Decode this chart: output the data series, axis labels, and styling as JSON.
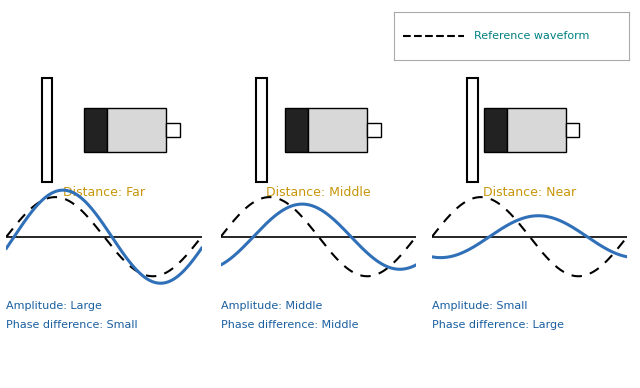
{
  "bg_color": "#ffffff",
  "panel_titles": [
    "Distance: Far",
    "Distance: Middle",
    "Distance: Near"
  ],
  "bottom_labels": [
    [
      "Amplitude: Large",
      "Phase difference: Small"
    ],
    [
      "Amplitude: Middle",
      "Phase difference: Middle"
    ],
    [
      "Amplitude: Small",
      "Phase difference: Large"
    ]
  ],
  "title_color": "#c8960a",
  "bottom_label_color": "#1a5fa0",
  "amplitudes": [
    1.0,
    0.7,
    0.45
  ],
  "phase_shifts": [
    0.25,
    1.05,
    1.85
  ],
  "ref_amplitude": 0.85,
  "wave_color": "#3070b8",
  "ref_color": "#000000",
  "legend_text": "Reference waveform",
  "legend_text_color": "#008080",
  "sensor_body_color": "#d8d8d8",
  "sensor_black_color": "#222222"
}
